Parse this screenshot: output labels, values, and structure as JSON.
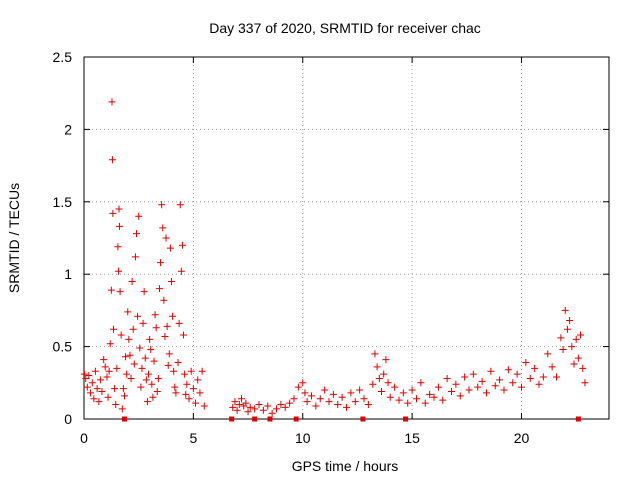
{
  "chart_data": {
    "type": "scatter",
    "title": "Day 337 of 2020, SRMTID for receiver chac",
    "xlabel": "GPS time / hours",
    "ylabel": "SRMTID / TECUs",
    "xlim": [
      0,
      24
    ],
    "ylim": [
      0,
      2.5
    ],
    "xticks": [
      0,
      5,
      10,
      15,
      20
    ],
    "xtick_labels": [
      "0",
      "5",
      "10",
      "15",
      "20"
    ],
    "yticks": [
      0,
      0.5,
      1,
      1.5,
      2,
      2.5
    ],
    "ytick_labels": [
      "0",
      "0.5",
      "1",
      "1.5",
      "2",
      "2.5"
    ],
    "grid": true,
    "marker": "+",
    "color": "#e00000",
    "series": [
      {
        "name": "SRMTID",
        "points": [
          [
            0.02,
            0.31
          ],
          [
            0.08,
            0.28
          ],
          [
            0.15,
            0.22
          ],
          [
            0.22,
            0.3
          ],
          [
            0.3,
            0.18
          ],
          [
            0.38,
            0.25
          ],
          [
            0.45,
            0.14
          ],
          [
            0.52,
            0.33
          ],
          [
            0.6,
            0.21
          ],
          [
            0.68,
            0.12
          ],
          [
            0.75,
            0.27
          ],
          [
            0.82,
            0.19
          ],
          [
            0.9,
            0.41
          ],
          [
            0.97,
            0.36
          ],
          [
            1.05,
            0.29
          ],
          [
            1.1,
            0.15
          ],
          [
            1.15,
            0.33
          ],
          [
            1.2,
            0.52
          ],
          [
            1.25,
            0.89
          ],
          [
            1.28,
            2.19
          ],
          [
            1.3,
            1.79
          ],
          [
            1.32,
            1.42
          ],
          [
            1.35,
            0.62
          ],
          [
            1.4,
            0.21
          ],
          [
            1.45,
            0.1
          ],
          [
            1.5,
            0.35
          ],
          [
            1.55,
            1.19
          ],
          [
            1.58,
            1.02
          ],
          [
            1.6,
            1.45
          ],
          [
            1.62,
            1.33
          ],
          [
            1.65,
            0.88
          ],
          [
            1.7,
            0.58
          ],
          [
            1.75,
            0.07
          ],
          [
            1.8,
            0.21
          ],
          [
            1.85,
            0.16
          ],
          [
            1.9,
            0.43
          ],
          [
            1.95,
            0.31
          ],
          [
            2.0,
            0.74
          ],
          [
            2.05,
            0.55
          ],
          [
            2.1,
            0.44
          ],
          [
            2.15,
            0.28
          ],
          [
            2.2,
            0.95
          ],
          [
            2.25,
            0.62
          ],
          [
            2.3,
            0.38
          ],
          [
            2.35,
            1.12
          ],
          [
            2.4,
            1.28
          ],
          [
            2.45,
            0.71
          ],
          [
            2.5,
            1.4
          ],
          [
            2.55,
            0.49
          ],
          [
            2.6,
            0.22
          ],
          [
            2.65,
            0.35
          ],
          [
            2.7,
            0.66
          ],
          [
            2.75,
            0.88
          ],
          [
            2.8,
            0.42
          ],
          [
            2.85,
            0.27
          ],
          [
            2.9,
            0.12
          ],
          [
            2.95,
            0.31
          ],
          [
            3.0,
            0.55
          ],
          [
            3.05,
            0.48
          ],
          [
            3.1,
            0.24
          ],
          [
            3.15,
            0.15
          ],
          [
            3.2,
            0.4
          ],
          [
            3.25,
            0.72
          ],
          [
            3.3,
            0.63
          ],
          [
            3.35,
            0.19
          ],
          [
            3.4,
            0.28
          ],
          [
            3.45,
            0.9
          ],
          [
            3.5,
            1.08
          ],
          [
            3.55,
            1.48
          ],
          [
            3.6,
            1.32
          ],
          [
            3.65,
            0.82
          ],
          [
            3.7,
            0.57
          ],
          [
            3.75,
            1.25
          ],
          [
            3.8,
            0.64
          ],
          [
            3.85,
            0.37
          ],
          [
            3.9,
            0.45
          ],
          [
            3.95,
            1.18
          ],
          [
            4.0,
            0.95
          ],
          [
            4.05,
            0.71
          ],
          [
            4.1,
            0.33
          ],
          [
            4.15,
            0.22
          ],
          [
            4.2,
            0.18
          ],
          [
            4.3,
            0.39
          ],
          [
            4.35,
            0.66
          ],
          [
            4.4,
            1.48
          ],
          [
            4.45,
            1.02
          ],
          [
            4.5,
            1.2
          ],
          [
            4.55,
            0.58
          ],
          [
            4.6,
            0.31
          ],
          [
            4.65,
            0.17
          ],
          [
            4.7,
            0.24
          ],
          [
            4.8,
            0.14
          ],
          [
            4.9,
            0.33
          ],
          [
            5.0,
            0.21
          ],
          [
            5.1,
            0.11
          ],
          [
            5.2,
            0.27
          ],
          [
            5.3,
            0.18
          ],
          [
            5.4,
            0.33
          ],
          [
            5.5,
            0.09
          ],
          [
            6.8,
            0.08
          ],
          [
            6.9,
            0.12
          ],
          [
            7.0,
            0.06
          ],
          [
            7.1,
            0.1
          ],
          [
            7.2,
            0.14
          ],
          [
            7.3,
            0.09
          ],
          [
            7.4,
            0.11
          ],
          [
            7.5,
            0.05
          ],
          [
            7.6,
            0.08
          ],
          [
            7.8,
            0.07
          ],
          [
            8.0,
            0.1
          ],
          [
            8.2,
            0.06
          ],
          [
            8.4,
            0.09
          ],
          [
            8.6,
            0.04
          ],
          [
            8.8,
            0.07
          ],
          [
            9.0,
            0.1
          ],
          [
            9.2,
            0.08
          ],
          [
            9.4,
            0.11
          ],
          [
            9.6,
            0.14
          ],
          [
            9.8,
            0.22
          ],
          [
            10.0,
            0.25
          ],
          [
            10.1,
            0.18
          ],
          [
            10.2,
            0.12
          ],
          [
            10.4,
            0.16
          ],
          [
            10.6,
            0.09
          ],
          [
            10.8,
            0.14
          ],
          [
            11.0,
            0.2
          ],
          [
            11.2,
            0.12
          ],
          [
            11.4,
            0.17
          ],
          [
            11.6,
            0.1
          ],
          [
            11.8,
            0.15
          ],
          [
            12.0,
            0.08
          ],
          [
            12.2,
            0.18
          ],
          [
            12.4,
            0.12
          ],
          [
            12.6,
            0.2
          ],
          [
            12.8,
            0.14
          ],
          [
            13.0,
            0.1
          ],
          [
            13.2,
            0.24
          ],
          [
            13.3,
            0.45
          ],
          [
            13.4,
            0.36
          ],
          [
            13.5,
            0.28
          ],
          [
            13.6,
            0.19
          ],
          [
            13.7,
            0.31
          ],
          [
            13.8,
            0.41
          ],
          [
            13.9,
            0.25
          ],
          [
            14.0,
            0.15
          ],
          [
            14.2,
            0.22
          ],
          [
            14.4,
            0.13
          ],
          [
            14.6,
            0.18
          ],
          [
            14.8,
            0.11
          ],
          [
            15.0,
            0.2
          ],
          [
            15.2,
            0.14
          ],
          [
            15.4,
            0.25
          ],
          [
            15.6,
            0.11
          ],
          [
            15.8,
            0.17
          ],
          [
            16.0,
            0.15
          ],
          [
            16.2,
            0.22
          ],
          [
            16.4,
            0.13
          ],
          [
            16.6,
            0.28
          ],
          [
            16.8,
            0.19
          ],
          [
            17.0,
            0.24
          ],
          [
            17.2,
            0.16
          ],
          [
            17.4,
            0.29
          ],
          [
            17.6,
            0.2
          ],
          [
            17.8,
            0.31
          ],
          [
            18.0,
            0.22
          ],
          [
            18.2,
            0.26
          ],
          [
            18.4,
            0.18
          ],
          [
            18.6,
            0.33
          ],
          [
            18.8,
            0.23
          ],
          [
            19.0,
            0.27
          ],
          [
            19.2,
            0.2
          ],
          [
            19.4,
            0.34
          ],
          [
            19.6,
            0.25
          ],
          [
            19.8,
            0.31
          ],
          [
            20.0,
            0.22
          ],
          [
            20.2,
            0.39
          ],
          [
            20.4,
            0.28
          ],
          [
            20.6,
            0.35
          ],
          [
            20.8,
            0.24
          ],
          [
            21.0,
            0.29
          ],
          [
            21.2,
            0.45
          ],
          [
            21.4,
            0.36
          ],
          [
            21.6,
            0.29
          ],
          [
            21.8,
            0.56
          ],
          [
            21.9,
            0.48
          ],
          [
            22.0,
            0.75
          ],
          [
            22.1,
            0.62
          ],
          [
            22.2,
            0.68
          ],
          [
            22.3,
            0.5
          ],
          [
            22.4,
            0.38
          ],
          [
            22.5,
            0.55
          ],
          [
            22.6,
            0.42
          ],
          [
            22.7,
            0.58
          ],
          [
            22.8,
            0.35
          ],
          [
            22.9,
            0.25
          ]
        ]
      }
    ],
    "baseline_marks": [
      1.85,
      6.75,
      7.8,
      8.5,
      9.7,
      12.75,
      14.7,
      22.6
    ]
  }
}
